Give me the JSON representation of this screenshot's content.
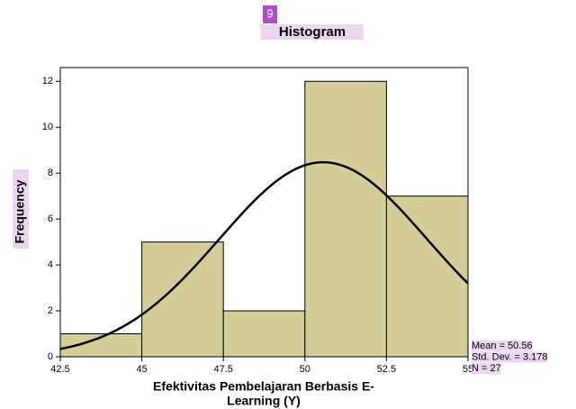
{
  "badge": "9",
  "chart_data": {
    "type": "histogram",
    "title": "Histogram",
    "xlabel": [
      "Efektivitas Pembelajaran Berbasis E-",
      "Learning (Y)"
    ],
    "ylabel": "Frequency",
    "bins": [
      42.5,
      45,
      47.5,
      50,
      52.5,
      55
    ],
    "values": [
      1,
      5,
      2,
      12,
      7
    ],
    "color": "#d4cd98",
    "xlim": [
      42.5,
      55
    ],
    "xticks": [
      42.5,
      45,
      47.5,
      50,
      52.5,
      55
    ],
    "ylim": [
      0,
      12.6
    ],
    "yticks": [
      0,
      2,
      4,
      6,
      8,
      10,
      12
    ],
    "curve": {
      "mean": 50.56,
      "std": 3.178,
      "n": 27,
      "labels": [
        "Mean = 50.56",
        "Std. Dev. = 3.178",
        "N = 27"
      ]
    }
  }
}
